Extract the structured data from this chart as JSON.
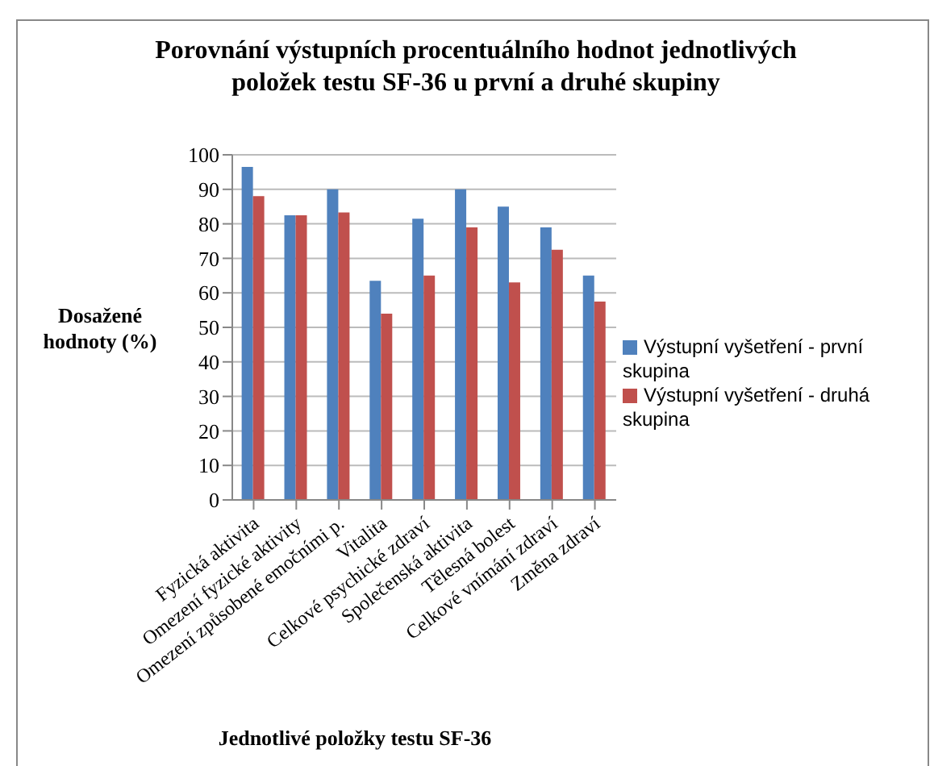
{
  "chart_data": {
    "type": "bar",
    "title": "Porovnání výstupních procentuálního hodnot jednotlivých položek testu SF-36 u první a druhé skupiny",
    "xlabel": "Jednotlivé položky testu SF-36",
    "ylabel": "Dosažené hodnoty (%)",
    "categories": [
      "Fyzická aktivita",
      "Omezení fyzické aktivity",
      "Omezení způsobené emočními p.",
      "Vitalita",
      "Celkové psychické zdraví",
      "Společenská aktivita",
      "Tělesná bolest",
      "Celkové vnímání zdraví",
      "Změna zdraví"
    ],
    "series": [
      {
        "name": "Výstupní vyšetření - první skupina",
        "color": "#4f81bd",
        "values": [
          96.5,
          82.5,
          90,
          63.5,
          81.5,
          90,
          85,
          79,
          65
        ]
      },
      {
        "name": "Výstupní vyšetření - druhá skupina",
        "color": "#c0504d",
        "values": [
          88,
          82.5,
          83.3,
          54,
          65,
          79,
          63,
          72.5,
          57.5
        ]
      }
    ],
    "ylim": [
      0,
      100
    ],
    "yticks": [
      0,
      10,
      20,
      30,
      40,
      50,
      60,
      70,
      80,
      90,
      100
    ],
    "grid": "y",
    "legend": "right"
  }
}
